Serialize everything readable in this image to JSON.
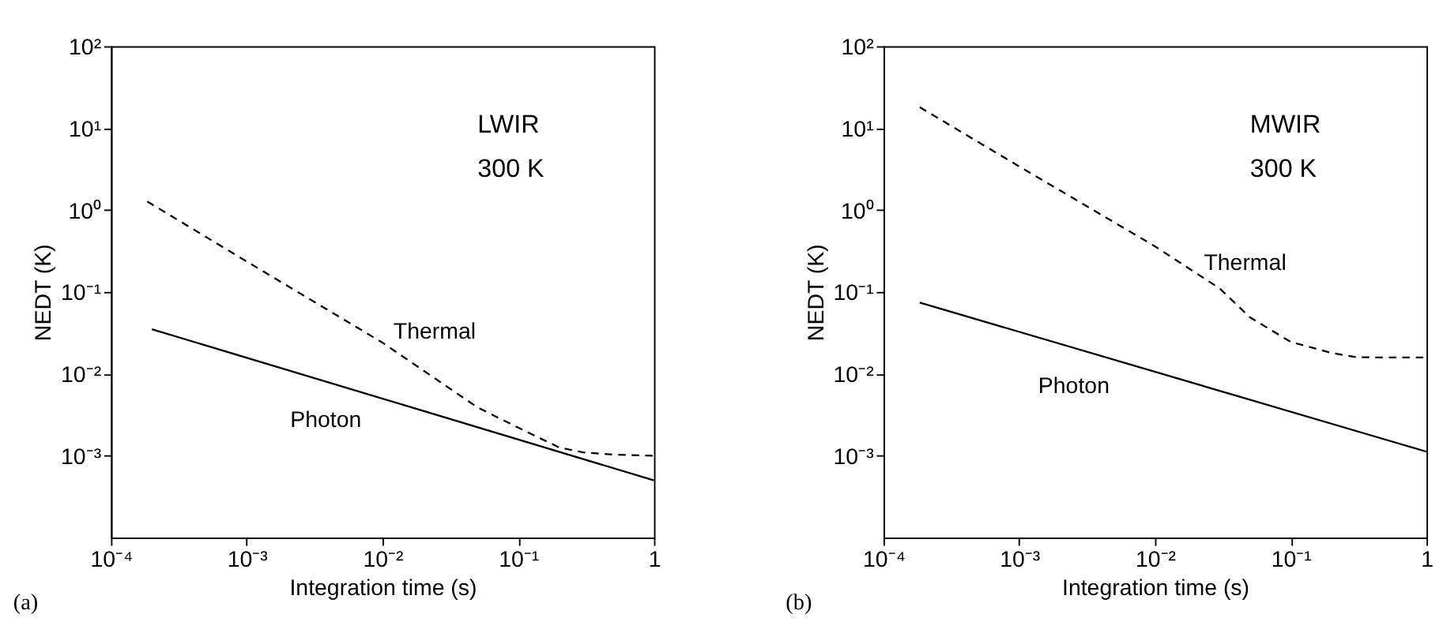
{
  "chart_data": [
    {
      "type": "line",
      "xlabel": "Integration time (s)",
      "ylabel": "NEDT (K)",
      "log": "xy",
      "grid": false,
      "xlim": [
        0.0001,
        1
      ],
      "ylim": [
        0.0001,
        100
      ],
      "xticks": [
        {
          "value": 0.0001,
          "label": "10⁻⁴"
        },
        {
          "value": 0.001,
          "label": "10⁻³"
        },
        {
          "value": 0.01,
          "label": "10⁻²"
        },
        {
          "value": 0.1,
          "label": "10⁻¹"
        },
        1
      ],
      "yticks": [
        {
          "value": 0.001,
          "label": "10⁻³"
        },
        {
          "value": 0.01,
          "label": "10⁻²"
        },
        {
          "value": 0.1,
          "label": "10⁻¹"
        },
        {
          "value": 1,
          "label": "10⁰"
        },
        {
          "value": 10,
          "label": "10¹"
        },
        {
          "value": 100,
          "label": "10²"
        }
      ],
      "series": [
        {
          "color": "#000000",
          "line_style": "dashed",
          "x": [
            0.000185,
            0.001,
            0.01,
            0.05,
            0.1,
            0.2,
            0.3,
            0.5,
            1
          ],
          "values": [
            1.27,
            0.235,
            0.024,
            0.0039,
            0.0022,
            0.00126,
            0.0011,
            0.00103,
            0.001
          ]
        },
        {
          "color": "#000000",
          "line_style": "solid",
          "x": [
            0.0002,
            1
          ],
          "values": [
            0.035,
            0.0005
          ]
        }
      ],
      "annotations": [
        "LWIR",
        "300 K",
        "Thermal",
        "Photon",
        "(a)"
      ]
    },
    {
      "type": "line",
      "xlabel": "Integration time (s)",
      "ylabel": "NEDT (K)",
      "log": "xy",
      "grid": false,
      "xlim": [
        0.0001,
        1
      ],
      "ylim": [
        0.0001,
        100
      ],
      "xticks": [
        {
          "value": 0.0001,
          "label": "10⁻⁴"
        },
        {
          "value": 0.001,
          "label": "10⁻³"
        },
        {
          "value": 0.01,
          "label": "10⁻²"
        },
        {
          "value": 0.1,
          "label": "10⁻¹"
        },
        1
      ],
      "yticks": [
        {
          "value": 0.001,
          "label": "10⁻³"
        },
        {
          "value": 0.01,
          "label": "10⁻²"
        },
        {
          "value": 0.1,
          "label": "10⁻¹"
        },
        {
          "value": 1,
          "label": "10⁰"
        },
        {
          "value": 10,
          "label": "10¹"
        },
        {
          "value": 100,
          "label": "10²"
        }
      ],
      "series": [
        {
          "color": "#000000",
          "line_style": "dashed",
          "x": [
            0.000185,
            0.001,
            0.01,
            0.03,
            0.05,
            0.1,
            0.2,
            0.3,
            0.5,
            1
          ],
          "values": [
            18,
            3.4,
            0.36,
            0.11,
            0.049,
            0.0245,
            0.018,
            0.016,
            0.0158,
            0.0158
          ]
        },
        {
          "color": "#000000",
          "line_style": "solid",
          "x": [
            0.000185,
            1
          ],
          "values": [
            0.074,
            0.00112
          ]
        }
      ],
      "annotations": [
        "MWIR",
        "300 K",
        "Thermal",
        "Photon",
        "(b)"
      ]
    }
  ]
}
